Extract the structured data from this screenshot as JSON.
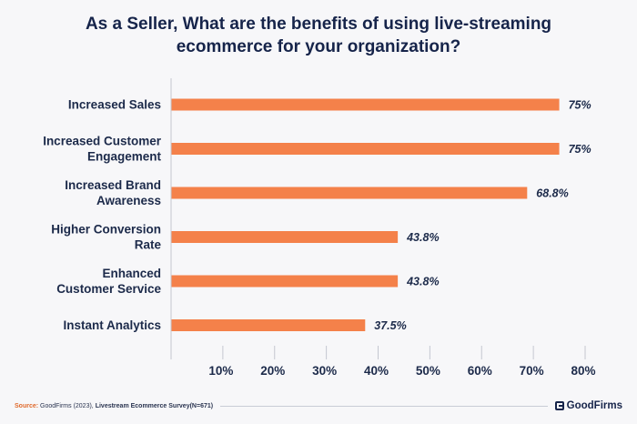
{
  "chart_data": {
    "type": "bar",
    "orientation": "horizontal",
    "title_lines": [
      "As a Seller, What are the benefits of using live-streaming",
      "ecommerce for your organization?"
    ],
    "categories": [
      [
        "Increased Sales"
      ],
      [
        "Increased Customer",
        "Engagement"
      ],
      [
        "Increased Brand",
        "Awareness"
      ],
      [
        "Higher Conversion",
        "Rate"
      ],
      [
        "Enhanced",
        "Customer Service"
      ],
      [
        "Instant Analytics"
      ]
    ],
    "values": [
      75,
      75,
      68.8,
      43.8,
      43.8,
      37.5
    ],
    "value_labels": [
      "75%",
      "75%",
      "68.8%",
      "43.8%",
      "43.8%",
      "37.5%"
    ],
    "xlim": [
      0,
      80
    ],
    "xticks": [
      10,
      20,
      30,
      40,
      50,
      60,
      70,
      80
    ],
    "xtick_labels": [
      "10%",
      "20%",
      "30%",
      "40%",
      "50%",
      "60%",
      "70%",
      "80%"
    ],
    "bar_color": "#f4814a",
    "grid": false
  },
  "footer": {
    "source_key": "Source:",
    "source_text": " GoodFirms (2023), ",
    "source_bold": "Livestream Ecommerce Survey(N=671)",
    "logo_text": "GoodFirms"
  }
}
